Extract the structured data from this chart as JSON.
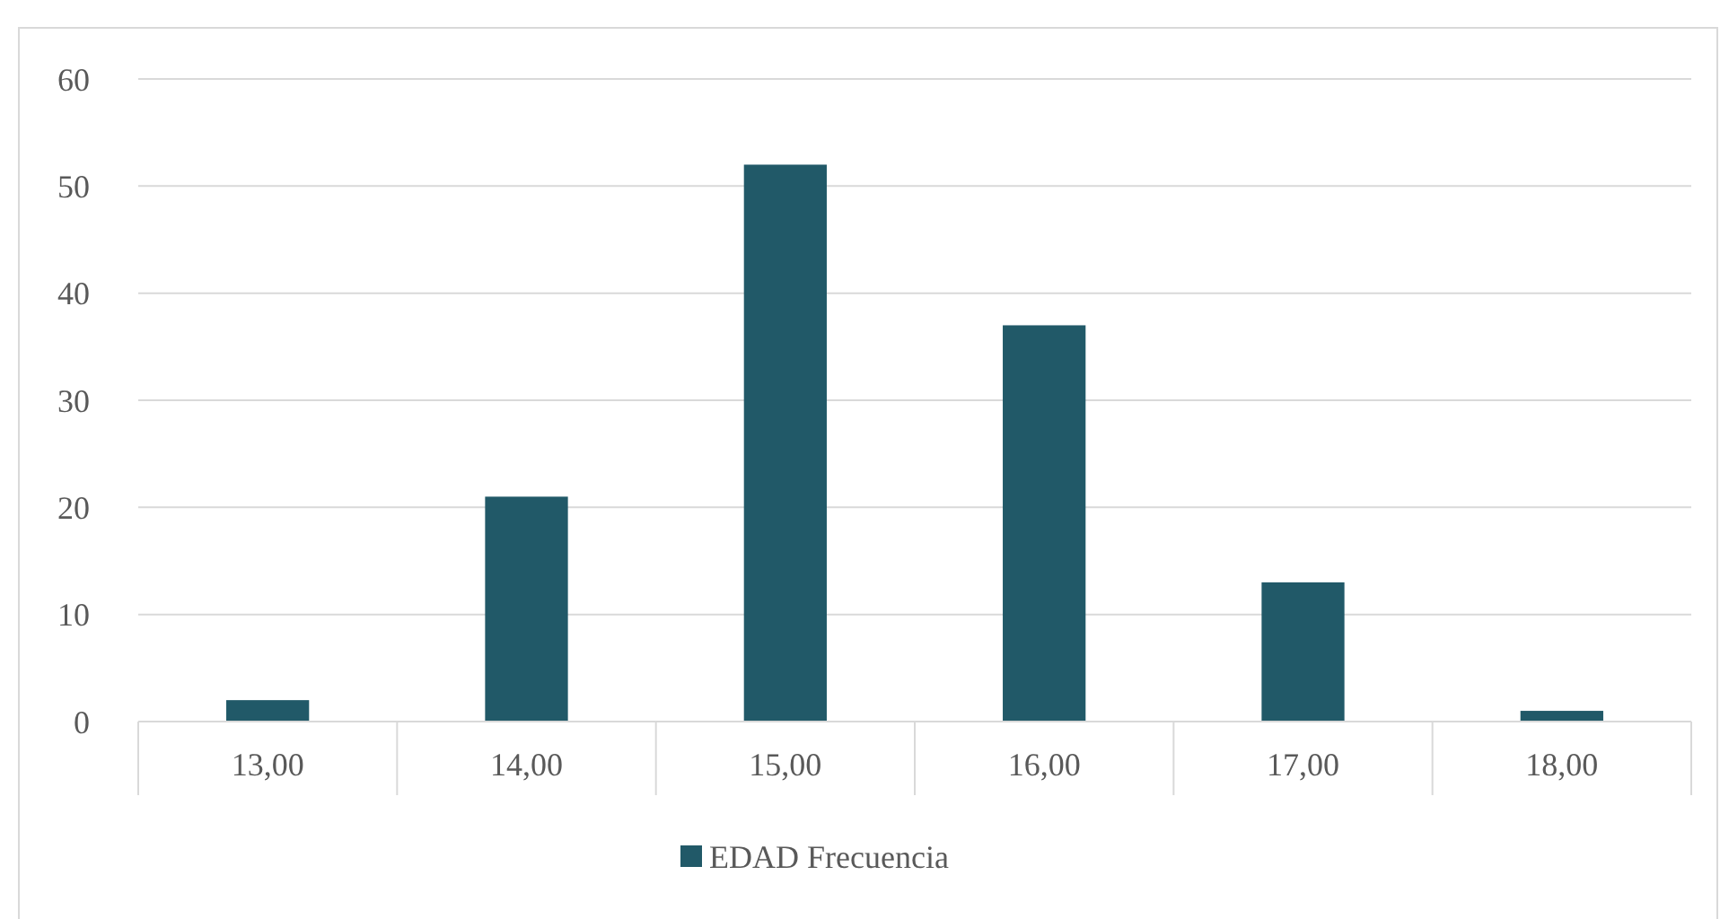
{
  "chart_data": {
    "type": "bar",
    "categories": [
      "13,00",
      "14,00",
      "15,00",
      "16,00",
      "17,00",
      "18,00"
    ],
    "series": [
      {
        "name": "EDAD Frecuencia",
        "color": "#215968",
        "values": [
          2,
          21,
          52,
          37,
          13,
          1
        ]
      }
    ],
    "ylim": [
      0,
      60
    ],
    "yticks": [
      0,
      10,
      20,
      30,
      40,
      50,
      60
    ],
    "grid": "y",
    "legend": "bottom"
  }
}
